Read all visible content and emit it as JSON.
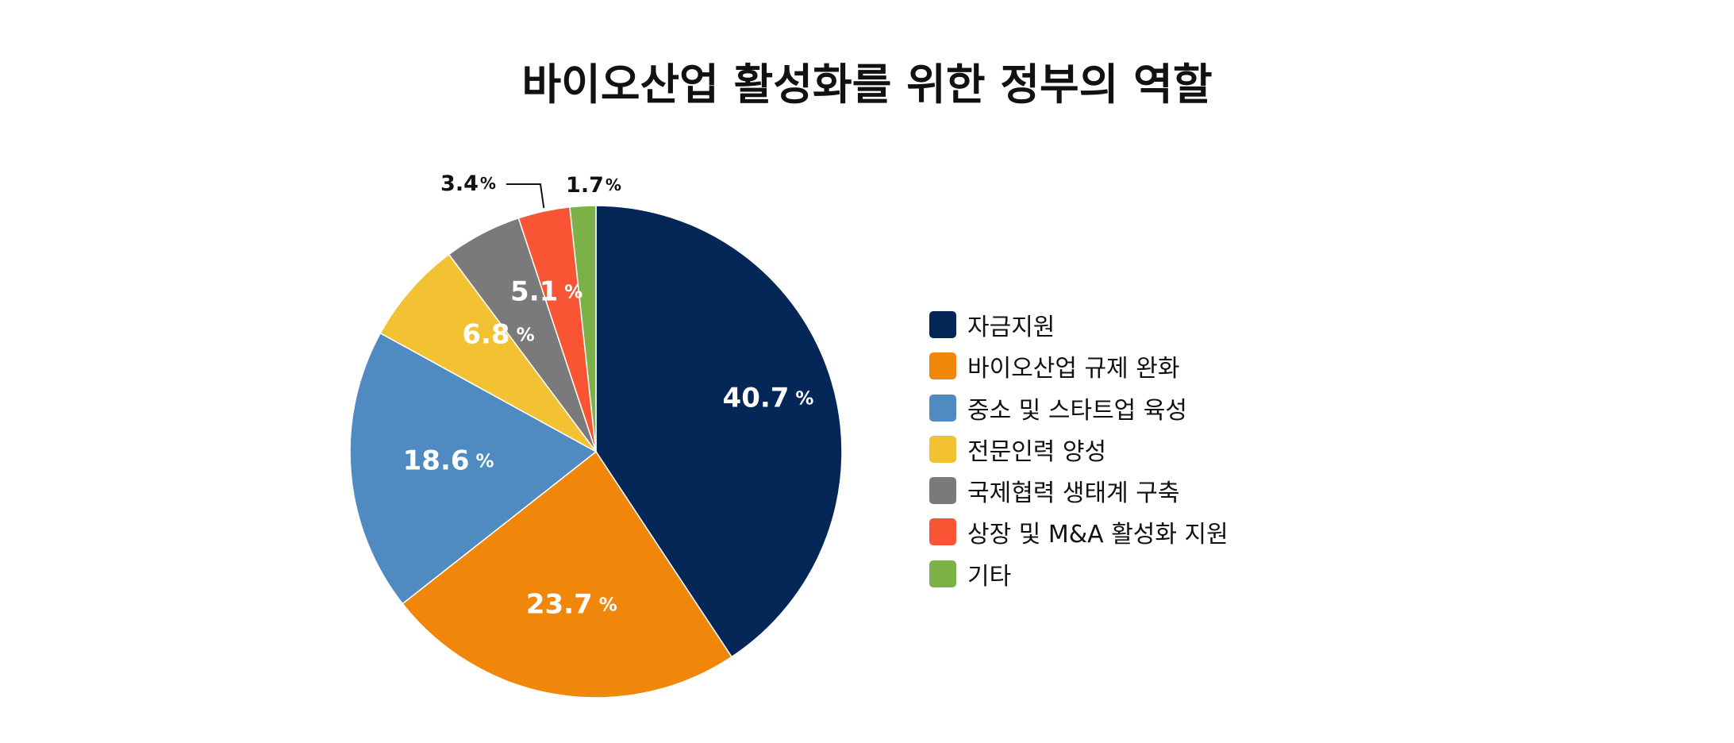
{
  "chart_data": {
    "type": "pie",
    "title": "바이오산업 활성화를 위한 정부의 역할",
    "value_suffix": "%",
    "categories": [
      "자금지원",
      "바이오산업 규제 완화",
      "중소 및 스타트업 육성",
      "전문인력 양성",
      "국제협력 생태계 구축",
      "상장 및 M&A 활성화 지원",
      "기타"
    ],
    "values": [
      40.7,
      23.7,
      18.6,
      6.8,
      5.1,
      3.4,
      1.7
    ],
    "colors": [
      "#042758",
      "#f0860a",
      "#4f8bc0",
      "#f2c232",
      "#7a7a7a",
      "#f95535",
      "#7bb146"
    ],
    "data_labels": [
      "40.7",
      "23.7",
      "18.6",
      "6.8",
      "5.1",
      "3.4",
      "1.7"
    ],
    "start_angle": "12 o'clock",
    "direction": "clockwise",
    "legend_position": "right"
  }
}
